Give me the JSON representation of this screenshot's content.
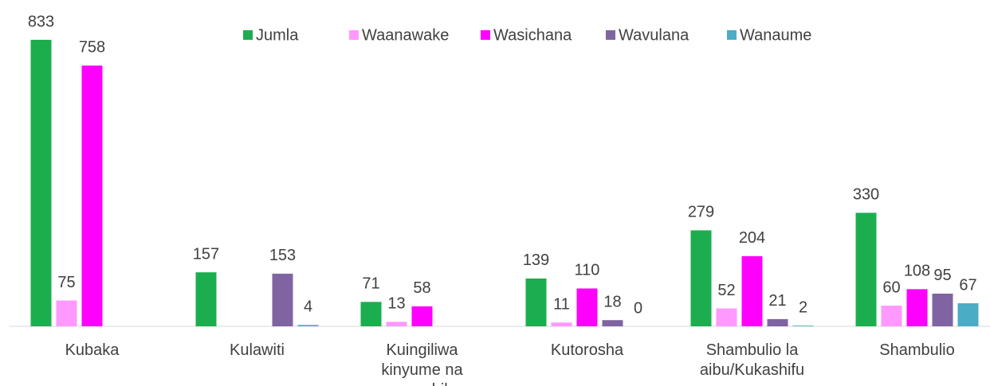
{
  "chart_data": {
    "type": "bar",
    "categories": [
      "Kubaka",
      "Kulawiti",
      "Kuingiliwa kinyume na maumbile",
      "Kutorosha",
      "Shambulio la aibu/Kukashifu",
      "Shambulio"
    ],
    "series": [
      {
        "name": "Jumla",
        "color": "#1cae4e",
        "values": [
          833,
          157,
          71,
          139,
          279,
          330
        ]
      },
      {
        "name": "Waanawake",
        "color": "#ff99ff",
        "values": [
          75,
          null,
          13,
          11,
          52,
          60
        ]
      },
      {
        "name": "Wasichana",
        "color": "#ff00ff",
        "values": [
          758,
          null,
          58,
          110,
          204,
          108
        ]
      },
      {
        "name": "Wavulana",
        "color": "#8064a2",
        "values": [
          null,
          153,
          null,
          18,
          21,
          95
        ]
      },
      {
        "name": "Wanaume",
        "color": "#4bacc6",
        "values": [
          null,
          4,
          null,
          0,
          2,
          67
        ]
      }
    ],
    "legend": "top"
  }
}
